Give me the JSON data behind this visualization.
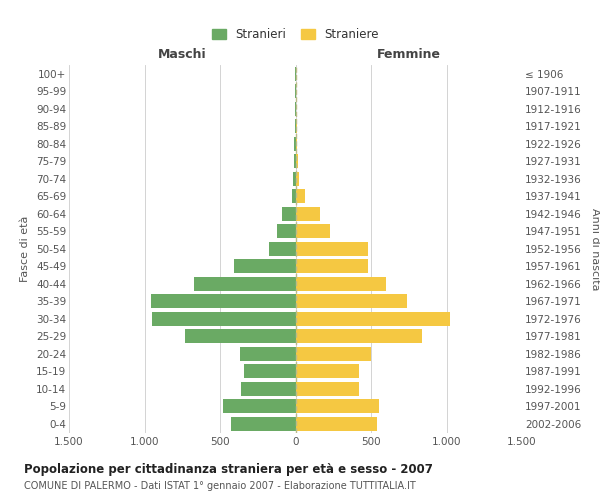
{
  "age_groups": [
    "0-4",
    "5-9",
    "10-14",
    "15-19",
    "20-24",
    "25-29",
    "30-34",
    "35-39",
    "40-44",
    "45-49",
    "50-54",
    "55-59",
    "60-64",
    "65-69",
    "70-74",
    "75-79",
    "80-84",
    "85-89",
    "90-94",
    "95-99",
    "100+"
  ],
  "birth_years": [
    "2002-2006",
    "1997-2001",
    "1992-1996",
    "1987-1991",
    "1982-1986",
    "1977-1981",
    "1972-1976",
    "1967-1971",
    "1962-1966",
    "1957-1961",
    "1952-1956",
    "1947-1951",
    "1942-1946",
    "1937-1941",
    "1932-1936",
    "1927-1931",
    "1922-1926",
    "1917-1921",
    "1912-1916",
    "1907-1911",
    "≤ 1906"
  ],
  "males": [
    430,
    480,
    360,
    340,
    370,
    730,
    950,
    960,
    670,
    410,
    175,
    120,
    90,
    25,
    15,
    10,
    8,
    5,
    3,
    2,
    2
  ],
  "females": [
    540,
    550,
    420,
    420,
    500,
    840,
    1020,
    740,
    600,
    480,
    480,
    230,
    160,
    60,
    20,
    15,
    12,
    7,
    5,
    3,
    3
  ],
  "male_color": "#6aaa64",
  "female_color": "#f5c842",
  "male_label": "Stranieri",
  "female_label": "Straniere",
  "title": "Popolazione per cittadinanza straniera per età e sesso - 2007",
  "subtitle": "COMUNE DI PALERMO - Dati ISTAT 1° gennaio 2007 - Elaborazione TUTTITALIA.IT",
  "xlabel_left": "Maschi",
  "xlabel_right": "Femmine",
  "ylabel_left": "Fasce di età",
  "ylabel_right": "Anni di nascita",
  "xlim": 1500,
  "bg_color": "#ffffff",
  "grid_color": "#cccccc"
}
